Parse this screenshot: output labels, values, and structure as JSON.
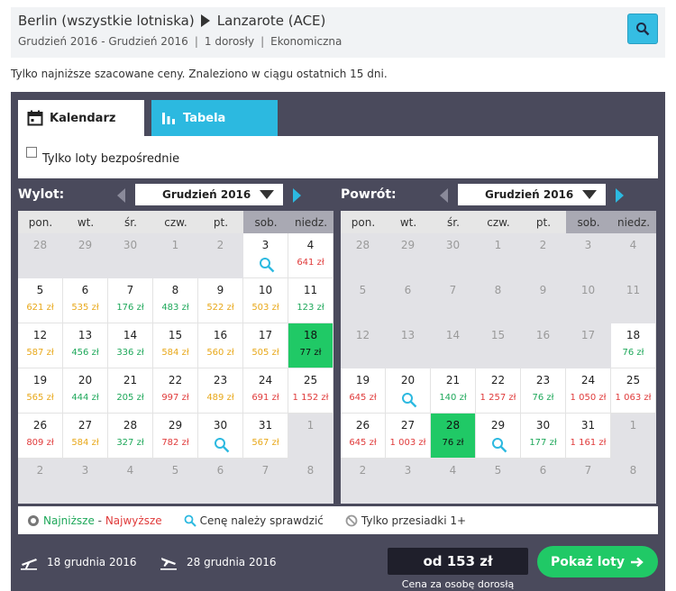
{
  "header": {
    "from": "Berlin (wszystkie lotniska)",
    "to": "Lanzarote (ACE)",
    "dates": "Grudzień 2016 - Grudzień 2016",
    "passengers": "1 dorosły",
    "class": "Ekonomiczna"
  },
  "info_text": "Tylko najniższe szacowane ceny. Znaleziono w ciągu ostatnich 15 dni.",
  "tabs": {
    "calendar": "Kalendarz",
    "table": "Tabela"
  },
  "filter": {
    "direct_only": "Tylko loty bezpośrednie"
  },
  "weekdays": [
    "pon.",
    "wt.",
    "śr.",
    "czw.",
    "pt.",
    "sob.",
    "niedz."
  ],
  "outbound": {
    "label": "Wylot:",
    "month": "Grudzień 2016",
    "rows": [
      [
        {
          "d": "28",
          "g": true
        },
        {
          "d": "29",
          "g": true
        },
        {
          "d": "30",
          "g": true
        },
        {
          "d": "1",
          "g": true
        },
        {
          "d": "2",
          "g": true
        },
        {
          "d": "3",
          "q": true
        },
        {
          "d": "4",
          "p": "641 zł",
          "c": "red"
        }
      ],
      [
        {
          "d": "5",
          "p": "621 zł",
          "c": "orange"
        },
        {
          "d": "6",
          "p": "535 zł",
          "c": "orange"
        },
        {
          "d": "7",
          "p": "176 zł",
          "c": "green"
        },
        {
          "d": "8",
          "p": "483 zł",
          "c": "green"
        },
        {
          "d": "9",
          "p": "522 zł",
          "c": "orange"
        },
        {
          "d": "10",
          "p": "503 zł",
          "c": "orange"
        },
        {
          "d": "11",
          "p": "123 zł",
          "c": "green"
        }
      ],
      [
        {
          "d": "12",
          "p": "587 zł",
          "c": "orange"
        },
        {
          "d": "13",
          "p": "456 zł",
          "c": "green"
        },
        {
          "d": "14",
          "p": "336 zł",
          "c": "green"
        },
        {
          "d": "15",
          "p": "584 zł",
          "c": "orange"
        },
        {
          "d": "16",
          "p": "560 zł",
          "c": "orange"
        },
        {
          "d": "17",
          "p": "505 zł",
          "c": "orange"
        },
        {
          "d": "18",
          "p": "77 zł",
          "c": "green",
          "sel": true
        }
      ],
      [
        {
          "d": "19",
          "p": "565 zł",
          "c": "orange"
        },
        {
          "d": "20",
          "p": "444 zł",
          "c": "green"
        },
        {
          "d": "21",
          "p": "205 zł",
          "c": "green"
        },
        {
          "d": "22",
          "p": "997 zł",
          "c": "red"
        },
        {
          "d": "23",
          "p": "489 zł",
          "c": "orange"
        },
        {
          "d": "24",
          "p": "691 zł",
          "c": "red"
        },
        {
          "d": "25",
          "p": "1 152 zł",
          "c": "red"
        }
      ],
      [
        {
          "d": "26",
          "p": "809 zł",
          "c": "red"
        },
        {
          "d": "27",
          "p": "584 zł",
          "c": "orange"
        },
        {
          "d": "28",
          "p": "327 zł",
          "c": "green"
        },
        {
          "d": "29",
          "p": "782 zł",
          "c": "red"
        },
        {
          "d": "30",
          "q": true
        },
        {
          "d": "31",
          "p": "567 zł",
          "c": "orange"
        },
        {
          "d": "1",
          "g": true
        }
      ],
      [
        {
          "d": "2",
          "g": true
        },
        {
          "d": "3",
          "g": true
        },
        {
          "d": "4",
          "g": true
        },
        {
          "d": "5",
          "g": true
        },
        {
          "d": "6",
          "g": true
        },
        {
          "d": "7",
          "g": true
        },
        {
          "d": "8",
          "g": true
        }
      ]
    ]
  },
  "return": {
    "label": "Powrót:",
    "month": "Grudzień 2016",
    "rows": [
      [
        {
          "d": "28",
          "g": true
        },
        {
          "d": "29",
          "g": true
        },
        {
          "d": "30",
          "g": true
        },
        {
          "d": "1",
          "g": true
        },
        {
          "d": "2",
          "g": true
        },
        {
          "d": "3",
          "g": true
        },
        {
          "d": "4",
          "g": true
        }
      ],
      [
        {
          "d": "5",
          "g": true
        },
        {
          "d": "6",
          "g": true
        },
        {
          "d": "7",
          "g": true
        },
        {
          "d": "8",
          "g": true
        },
        {
          "d": "9",
          "g": true
        },
        {
          "d": "10",
          "g": true
        },
        {
          "d": "11",
          "g": true
        }
      ],
      [
        {
          "d": "12",
          "g": true
        },
        {
          "d": "13",
          "g": true
        },
        {
          "d": "14",
          "g": true
        },
        {
          "d": "15",
          "g": true
        },
        {
          "d": "16",
          "g": true
        },
        {
          "d": "17",
          "g": true
        },
        {
          "d": "18",
          "p": "76 zł",
          "c": "green"
        }
      ],
      [
        {
          "d": "19",
          "p": "645 zł",
          "c": "red"
        },
        {
          "d": "20",
          "q": true
        },
        {
          "d": "21",
          "p": "140 zł",
          "c": "green"
        },
        {
          "d": "22",
          "p": "1 257 zł",
          "c": "red"
        },
        {
          "d": "23",
          "p": "76 zł",
          "c": "green"
        },
        {
          "d": "24",
          "p": "1 050 zł",
          "c": "red"
        },
        {
          "d": "25",
          "p": "1 063 zł",
          "c": "red"
        }
      ],
      [
        {
          "d": "26",
          "p": "645 zł",
          "c": "red"
        },
        {
          "d": "27",
          "p": "1 003 zł",
          "c": "red"
        },
        {
          "d": "28",
          "p": "76 zł",
          "c": "green",
          "sel": true
        },
        {
          "d": "29",
          "q": true
        },
        {
          "d": "30",
          "p": "177 zł",
          "c": "green"
        },
        {
          "d": "31",
          "p": "1 161 zł",
          "c": "red"
        },
        {
          "d": "1",
          "g": true
        }
      ],
      [
        {
          "d": "2",
          "g": true
        },
        {
          "d": "3",
          "g": true
        },
        {
          "d": "4",
          "g": true
        },
        {
          "d": "5",
          "g": true
        },
        {
          "d": "6",
          "g": true
        },
        {
          "d": "7",
          "g": true
        },
        {
          "d": "8",
          "g": true
        }
      ]
    ]
  },
  "legend": {
    "lowest": "Najniższe",
    "dash": " - ",
    "highest": "Najwyższe",
    "check": "Cenę należy sprawdzić",
    "transfers": "Tylko przesiadki 1+"
  },
  "footer": {
    "depart_date": "18 grudnia 2016",
    "return_date": "28 grudnia 2016",
    "price": "od 153 zł",
    "price_note": "Cena za osobę dorosłą",
    "show_button": "Pokaż loty"
  },
  "colors": {
    "green": "#20c966",
    "accent_blue": "#2cb9e0",
    "panel": "#4a4a5c",
    "red": "#e03b3b",
    "orange": "#e8a81a"
  }
}
